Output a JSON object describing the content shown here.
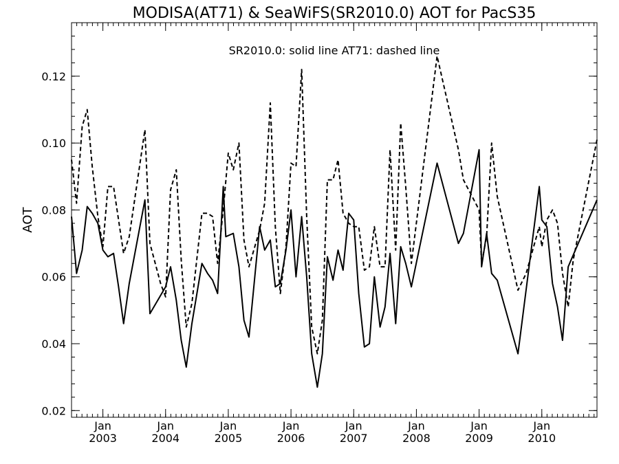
{
  "chart_data": {
    "type": "line",
    "title": "MODISA(AT71) & SeaWiFS(SR2010.0)  AOT for PacS35",
    "annotation": "SR2010.0: solid line   AT71: dashed line",
    "xlabel": "",
    "ylabel": "AOT",
    "xlim": [
      2002.5,
      2010.88
    ],
    "ylim": [
      0.018,
      0.136
    ],
    "grid": false,
    "yticks": [
      {
        "value": 0.02,
        "label": "0.02"
      },
      {
        "value": 0.04,
        "label": "0.04"
      },
      {
        "value": 0.06,
        "label": "0.06"
      },
      {
        "value": 0.08,
        "label": "0.08"
      },
      {
        "value": 0.1,
        "label": "0.10"
      },
      {
        "value": 0.12,
        "label": "0.12"
      }
    ],
    "xticks": [
      {
        "value": 2003.0,
        "month": "Jan",
        "year": "2003"
      },
      {
        "value": 2004.0,
        "month": "Jan",
        "year": "2004"
      },
      {
        "value": 2005.0,
        "month": "Jan",
        "year": "2005"
      },
      {
        "value": 2006.0,
        "month": "Jan",
        "year": "2006"
      },
      {
        "value": 2007.0,
        "month": "Jan",
        "year": "2007"
      },
      {
        "value": 2008.0,
        "month": "Jan",
        "year": "2008"
      },
      {
        "value": 2009.0,
        "month": "Jan",
        "year": "2009"
      },
      {
        "value": 2010.0,
        "month": "Jan",
        "year": "2010"
      }
    ],
    "series": [
      {
        "style": "solid",
        "points": [
          [
            2002.5,
            0.078
          ],
          [
            2002.58,
            0.061
          ],
          [
            2002.67,
            0.068
          ],
          [
            2002.75,
            0.081
          ],
          [
            2002.83,
            0.079
          ],
          [
            2002.92,
            0.076
          ],
          [
            2003.0,
            0.068
          ],
          [
            2003.08,
            0.066
          ],
          [
            2003.17,
            0.067
          ],
          [
            2003.25,
            0.057
          ],
          [
            2003.33,
            0.046
          ],
          [
            2003.42,
            0.058
          ],
          [
            2003.67,
            0.083
          ],
          [
            2003.75,
            0.049
          ],
          [
            2004.0,
            0.057
          ],
          [
            2004.08,
            0.063
          ],
          [
            2004.17,
            0.053
          ],
          [
            2004.25,
            0.041
          ],
          [
            2004.33,
            0.033
          ],
          [
            2004.42,
            0.046
          ],
          [
            2004.58,
            0.064
          ],
          [
            2004.67,
            0.061
          ],
          [
            2004.75,
            0.059
          ],
          [
            2004.83,
            0.055
          ],
          [
            2004.92,
            0.087
          ],
          [
            2004.96,
            0.072
          ],
          [
            2005.08,
            0.073
          ],
          [
            2005.17,
            0.063
          ],
          [
            2005.25,
            0.047
          ],
          [
            2005.33,
            0.042
          ],
          [
            2005.5,
            0.075
          ],
          [
            2005.58,
            0.068
          ],
          [
            2005.67,
            0.071
          ],
          [
            2005.75,
            0.057
          ],
          [
            2005.83,
            0.058
          ],
          [
            2005.92,
            0.068
          ],
          [
            2006.0,
            0.08
          ],
          [
            2006.08,
            0.06
          ],
          [
            2006.17,
            0.078
          ],
          [
            2006.25,
            0.06
          ],
          [
            2006.33,
            0.037
          ],
          [
            2006.42,
            0.027
          ],
          [
            2006.5,
            0.037
          ],
          [
            2006.58,
            0.066
          ],
          [
            2006.67,
            0.059
          ],
          [
            2006.75,
            0.068
          ],
          [
            2006.83,
            0.062
          ],
          [
            2006.92,
            0.079
          ],
          [
            2007.0,
            0.077
          ],
          [
            2007.08,
            0.055
          ],
          [
            2007.17,
            0.039
          ],
          [
            2007.25,
            0.04
          ],
          [
            2007.33,
            0.06
          ],
          [
            2007.42,
            0.045
          ],
          [
            2007.5,
            0.051
          ],
          [
            2007.58,
            0.067
          ],
          [
            2007.67,
            0.046
          ],
          [
            2007.75,
            0.069
          ],
          [
            2007.83,
            0.064
          ],
          [
            2007.92,
            0.057
          ],
          [
            2008.33,
            0.094
          ],
          [
            2008.67,
            0.07
          ],
          [
            2008.75,
            0.073
          ],
          [
            2009.0,
            0.098
          ],
          [
            2009.04,
            0.063
          ],
          [
            2009.12,
            0.073
          ],
          [
            2009.2,
            0.061
          ],
          [
            2009.29,
            0.059
          ],
          [
            2009.62,
            0.037
          ],
          [
            2009.96,
            0.087
          ],
          [
            2010.0,
            0.077
          ],
          [
            2010.08,
            0.075
          ],
          [
            2010.17,
            0.058
          ],
          [
            2010.25,
            0.051
          ],
          [
            2010.33,
            0.041
          ],
          [
            2010.42,
            0.063
          ],
          [
            2010.88,
            0.083
          ]
        ]
      },
      {
        "style": "dashed",
        "points": [
          [
            2002.5,
            0.095
          ],
          [
            2002.58,
            0.082
          ],
          [
            2002.67,
            0.105
          ],
          [
            2002.75,
            0.11
          ],
          [
            2002.83,
            0.093
          ],
          [
            2002.92,
            0.078
          ],
          [
            2003.0,
            0.069
          ],
          [
            2003.08,
            0.087
          ],
          [
            2003.17,
            0.087
          ],
          [
            2003.25,
            0.077
          ],
          [
            2003.33,
            0.067
          ],
          [
            2003.42,
            0.072
          ],
          [
            2003.67,
            0.104
          ],
          [
            2003.75,
            0.07
          ],
          [
            2003.92,
            0.058
          ],
          [
            2004.0,
            0.054
          ],
          [
            2004.08,
            0.086
          ],
          [
            2004.17,
            0.092
          ],
          [
            2004.25,
            0.065
          ],
          [
            2004.33,
            0.045
          ],
          [
            2004.42,
            0.052
          ],
          [
            2004.58,
            0.079
          ],
          [
            2004.67,
            0.079
          ],
          [
            2004.75,
            0.078
          ],
          [
            2004.83,
            0.064
          ],
          [
            2004.92,
            0.08
          ],
          [
            2005.0,
            0.097
          ],
          [
            2005.08,
            0.092
          ],
          [
            2005.17,
            0.1
          ],
          [
            2005.25,
            0.071
          ],
          [
            2005.33,
            0.063
          ],
          [
            2005.5,
            0.074
          ],
          [
            2005.58,
            0.082
          ],
          [
            2005.67,
            0.112
          ],
          [
            2005.75,
            0.075
          ],
          [
            2005.83,
            0.055
          ],
          [
            2005.92,
            0.069
          ],
          [
            2006.0,
            0.094
          ],
          [
            2006.08,
            0.093
          ],
          [
            2006.17,
            0.122
          ],
          [
            2006.25,
            0.078
          ],
          [
            2006.33,
            0.045
          ],
          [
            2006.42,
            0.037
          ],
          [
            2006.5,
            0.047
          ],
          [
            2006.58,
            0.089
          ],
          [
            2006.67,
            0.089
          ],
          [
            2006.75,
            0.095
          ],
          [
            2006.83,
            0.079
          ],
          [
            2006.92,
            0.076
          ],
          [
            2007.0,
            0.075
          ],
          [
            2007.08,
            0.075
          ],
          [
            2007.17,
            0.062
          ],
          [
            2007.25,
            0.063
          ],
          [
            2007.33,
            0.075
          ],
          [
            2007.42,
            0.063
          ],
          [
            2007.5,
            0.063
          ],
          [
            2007.58,
            0.098
          ],
          [
            2007.67,
            0.068
          ],
          [
            2007.75,
            0.106
          ],
          [
            2007.83,
            0.087
          ],
          [
            2007.92,
            0.064
          ],
          [
            2008.33,
            0.126
          ],
          [
            2008.67,
            0.098
          ],
          [
            2008.75,
            0.089
          ],
          [
            2009.0,
            0.08
          ],
          [
            2009.04,
            0.064
          ],
          [
            2009.12,
            0.072
          ],
          [
            2009.2,
            0.1
          ],
          [
            2009.29,
            0.084
          ],
          [
            2009.62,
            0.056
          ],
          [
            2009.75,
            0.061
          ],
          [
            2009.96,
            0.075
          ],
          [
            2010.0,
            0.069
          ],
          [
            2010.08,
            0.077
          ],
          [
            2010.17,
            0.08
          ],
          [
            2010.25,
            0.076
          ],
          [
            2010.33,
            0.061
          ],
          [
            2010.42,
            0.051
          ],
          [
            2010.5,
            0.065
          ],
          [
            2010.88,
            0.101
          ]
        ]
      }
    ]
  }
}
